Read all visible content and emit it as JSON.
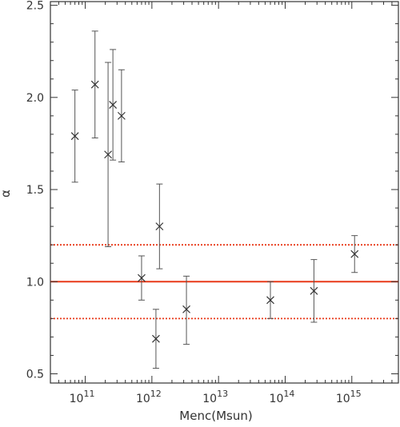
{
  "chart_data": {
    "type": "scatter",
    "title": "",
    "xlabel": "Menc(Msun)",
    "ylabel": "α",
    "xscale": "log",
    "xlim": [
      30000000000.0,
      5000000000000000.0
    ],
    "ylim": [
      0.45,
      2.52
    ],
    "grid": false,
    "x_ticks": [
      {
        "value": 100000000000.0,
        "base": "10",
        "exp": "11"
      },
      {
        "value": 1000000000000.0,
        "base": "10",
        "exp": "12"
      },
      {
        "value": 10000000000000.0,
        "base": "10",
        "exp": "13"
      },
      {
        "value": 100000000000000.0,
        "base": "10",
        "exp": "14"
      },
      {
        "value": 1000000000000000.0,
        "base": "10",
        "exp": "15"
      }
    ],
    "y_ticks": [
      {
        "value": 0.5,
        "label": "0.5"
      },
      {
        "value": 1.0,
        "label": "1.0"
      },
      {
        "value": 1.5,
        "label": "1.5"
      },
      {
        "value": 2.0,
        "label": "2.0"
      },
      {
        "value": 2.5,
        "label": "2.5"
      }
    ],
    "points": [
      {
        "x": 70000000000.0,
        "y": 1.79,
        "ylow": 1.54,
        "yhigh": 2.04
      },
      {
        "x": 140000000000.0,
        "y": 2.07,
        "ylow": 1.78,
        "yhigh": 2.36
      },
      {
        "x": 220000000000.0,
        "y": 1.69,
        "ylow": 1.19,
        "yhigh": 2.19
      },
      {
        "x": 260000000000.0,
        "y": 1.96,
        "ylow": 1.66,
        "yhigh": 2.26
      },
      {
        "x": 350000000000.0,
        "y": 1.9,
        "ylow": 1.65,
        "yhigh": 2.15
      },
      {
        "x": 700000000000.0,
        "y": 1.02,
        "ylow": 0.9,
        "yhigh": 1.14
      },
      {
        "x": 1150000000000.0,
        "y": 0.69,
        "ylow": 0.53,
        "yhigh": 0.85
      },
      {
        "x": 1300000000000.0,
        "y": 1.3,
        "ylow": 1.07,
        "yhigh": 1.53
      },
      {
        "x": 3300000000000.0,
        "y": 0.85,
        "ylow": 0.66,
        "yhigh": 1.03
      },
      {
        "x": 60000000000000.0,
        "y": 0.9,
        "ylow": 0.8,
        "yhigh": 1.0
      },
      {
        "x": 270000000000000.0,
        "y": 0.95,
        "ylow": 0.78,
        "yhigh": 1.12
      },
      {
        "x": 1100000000000000.0,
        "y": 1.15,
        "ylow": 1.05,
        "yhigh": 1.25
      }
    ],
    "reference_lines": [
      {
        "y": 1.0,
        "style": "solid",
        "color": "#e83a1a"
      },
      {
        "y": 1.2,
        "style": "dotted",
        "color": "#e83a1a"
      },
      {
        "y": 0.8,
        "style": "dotted",
        "color": "#e83a1a"
      }
    ],
    "colors": {
      "axis": "#333333",
      "points": "#333333",
      "errorbars": "#555555"
    }
  }
}
